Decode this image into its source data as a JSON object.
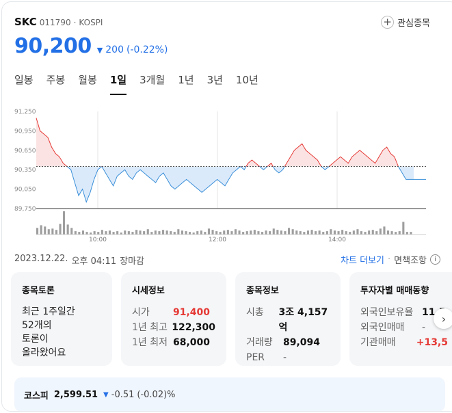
{
  "header": {
    "name": "SKC",
    "code": "011790",
    "dot": "·",
    "market": "KOSPI",
    "watch_label": "관심종목"
  },
  "price": {
    "current": "90,200",
    "change_arrow": "▼",
    "change": "200",
    "change_pct": "(-0.22%)"
  },
  "tabs": [
    "일봉",
    "주봉",
    "월봉",
    "1일",
    "3개월",
    "1년",
    "3년",
    "10년"
  ],
  "active_tab": "1일",
  "chart_data": {
    "type": "area",
    "y_ticks": [
      "91,250",
      "90,950",
      "90,650",
      "90,350",
      "90,050",
      "89,750"
    ],
    "x_ticks": [
      "10:00",
      "12:00",
      "14:00"
    ],
    "ylim": [
      89750,
      91250
    ],
    "baseline": 90400,
    "series": [
      {
        "values": [
          91150,
          90950,
          90900,
          90850,
          90700,
          90600,
          90550,
          90450,
          90400,
          90350,
          90150,
          89950,
          90050,
          89850,
          90000,
          90200,
          90350,
          90400,
          90300,
          90200,
          90100,
          90250,
          90300,
          90350,
          90250,
          90200,
          90300,
          90350,
          90300,
          90250,
          90200,
          90150,
          90250,
          90300,
          90200,
          90100,
          90050,
          90100,
          90150,
          90200,
          90150,
          90100,
          90050,
          90000,
          90050,
          90100,
          90150,
          90200,
          90150,
          90100,
          90200,
          90300,
          90350,
          90400,
          90350,
          90450,
          90500,
          90450,
          90400,
          90350,
          90400,
          90450,
          90350,
          90300,
          90350,
          90450,
          90550,
          90650,
          90700,
          90750,
          90650,
          90600,
          90550,
          90500,
          90400,
          90350,
          90400,
          90450,
          90500,
          90550,
          90500,
          90450,
          90550,
          90600,
          90650,
          90600,
          90550,
          90500,
          90450,
          90550,
          90650,
          90700,
          90600,
          90550,
          90400,
          90300,
          90200,
          90200,
          90200
        ]
      }
    ],
    "volume": [
      10,
      14,
      12,
      8,
      9,
      7,
      16,
      35,
      15,
      10,
      5,
      4,
      6,
      4,
      3,
      5,
      4,
      7,
      5,
      6,
      4,
      5,
      3,
      6,
      5,
      4,
      7,
      6,
      5,
      8,
      4,
      6,
      5,
      7,
      6,
      5,
      4,
      8,
      6,
      5,
      4,
      3,
      5,
      6,
      4,
      9,
      7,
      5,
      4,
      6,
      7,
      5,
      8,
      6,
      4,
      5,
      6,
      7,
      5,
      4,
      6,
      5,
      9,
      7,
      6,
      5,
      10,
      8,
      6,
      5,
      4,
      6,
      7,
      5,
      6,
      4,
      5,
      8,
      6,
      5,
      7,
      5,
      4,
      6,
      8,
      5,
      4,
      6,
      7,
      5,
      9,
      12,
      6,
      5,
      4,
      5,
      19,
      4,
      4
    ]
  },
  "timestamp": {
    "date": "2023.12.22.",
    "time": "오후 04:11",
    "status": "장마감"
  },
  "links": {
    "chart_more": "차트 더보기",
    "sep": "·",
    "disclaimer": "면책조항",
    "info_icon": "ⓘ"
  },
  "panels": {
    "discussion": {
      "title": "종목토론",
      "lines": [
        "최근 1주일간",
        "52개의",
        "토론이",
        "올라왔어요"
      ]
    },
    "market_info": {
      "title": "시세정보",
      "rows": [
        {
          "k": "시가",
          "v": "91,400"
        },
        {
          "k": "1년 최고",
          "v": "122,300"
        },
        {
          "k": "1년 최저",
          "v": "68,000"
        }
      ]
    },
    "stock_info": {
      "title": "종목정보",
      "rows": [
        {
          "k": "시총",
          "v": "3조 4,157억"
        },
        {
          "k": "거래량",
          "v": "89,094"
        },
        {
          "k": "PER",
          "v": "-"
        }
      ]
    },
    "investor": {
      "title": "투자자별 매매동향",
      "rows": [
        {
          "k": "외국인보유율",
          "v": "11.5"
        },
        {
          "k": "외국인매매",
          "v": "-"
        },
        {
          "k": "기관매매",
          "v": "+13,5"
        }
      ]
    }
  },
  "kospi": {
    "name": "코스피",
    "value": "2,599.51",
    "arrow": "▼",
    "change": "-0.51",
    "change_pct": "(-0.02)%"
  },
  "colors": {
    "accent_blue": "#2370e6",
    "up_red": "#e53935",
    "down_blue": "#3a8fd8"
  }
}
